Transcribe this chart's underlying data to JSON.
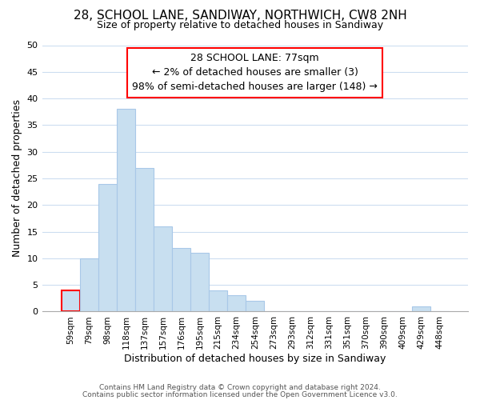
{
  "title_line1": "28, SCHOOL LANE, SANDIWAY, NORTHWICH, CW8 2NH",
  "title_line2": "Size of property relative to detached houses in Sandiway",
  "xlabel": "Distribution of detached houses by size in Sandiway",
  "ylabel": "Number of detached properties",
  "bin_labels": [
    "59sqm",
    "79sqm",
    "98sqm",
    "118sqm",
    "137sqm",
    "157sqm",
    "176sqm",
    "195sqm",
    "215sqm",
    "234sqm",
    "254sqm",
    "273sqm",
    "293sqm",
    "312sqm",
    "331sqm",
    "351sqm",
    "370sqm",
    "390sqm",
    "409sqm",
    "429sqm",
    "448sqm"
  ],
  "bar_heights": [
    4,
    10,
    24,
    38,
    27,
    16,
    12,
    11,
    4,
    3,
    2,
    0,
    0,
    0,
    0,
    0,
    0,
    0,
    0,
    1,
    0
  ],
  "bar_color": "#c8dff0",
  "bar_edge_color": "#a8c8e8",
  "highlight_bar_index": 0,
  "highlight_edge_color": "red",
  "annotation_text": "28 SCHOOL LANE: 77sqm\n← 2% of detached houses are smaller (3)\n98% of semi-detached houses are larger (148) →",
  "annotation_box_color": "white",
  "annotation_box_edge_color": "red",
  "ylim": [
    0,
    50
  ],
  "yticks": [
    0,
    5,
    10,
    15,
    20,
    25,
    30,
    35,
    40,
    45,
    50
  ],
  "footer_line1": "Contains HM Land Registry data © Crown copyright and database right 2024.",
  "footer_line2": "Contains public sector information licensed under the Open Government Licence v3.0.",
  "bg_color": "#ffffff",
  "grid_color": "#ccddf0"
}
